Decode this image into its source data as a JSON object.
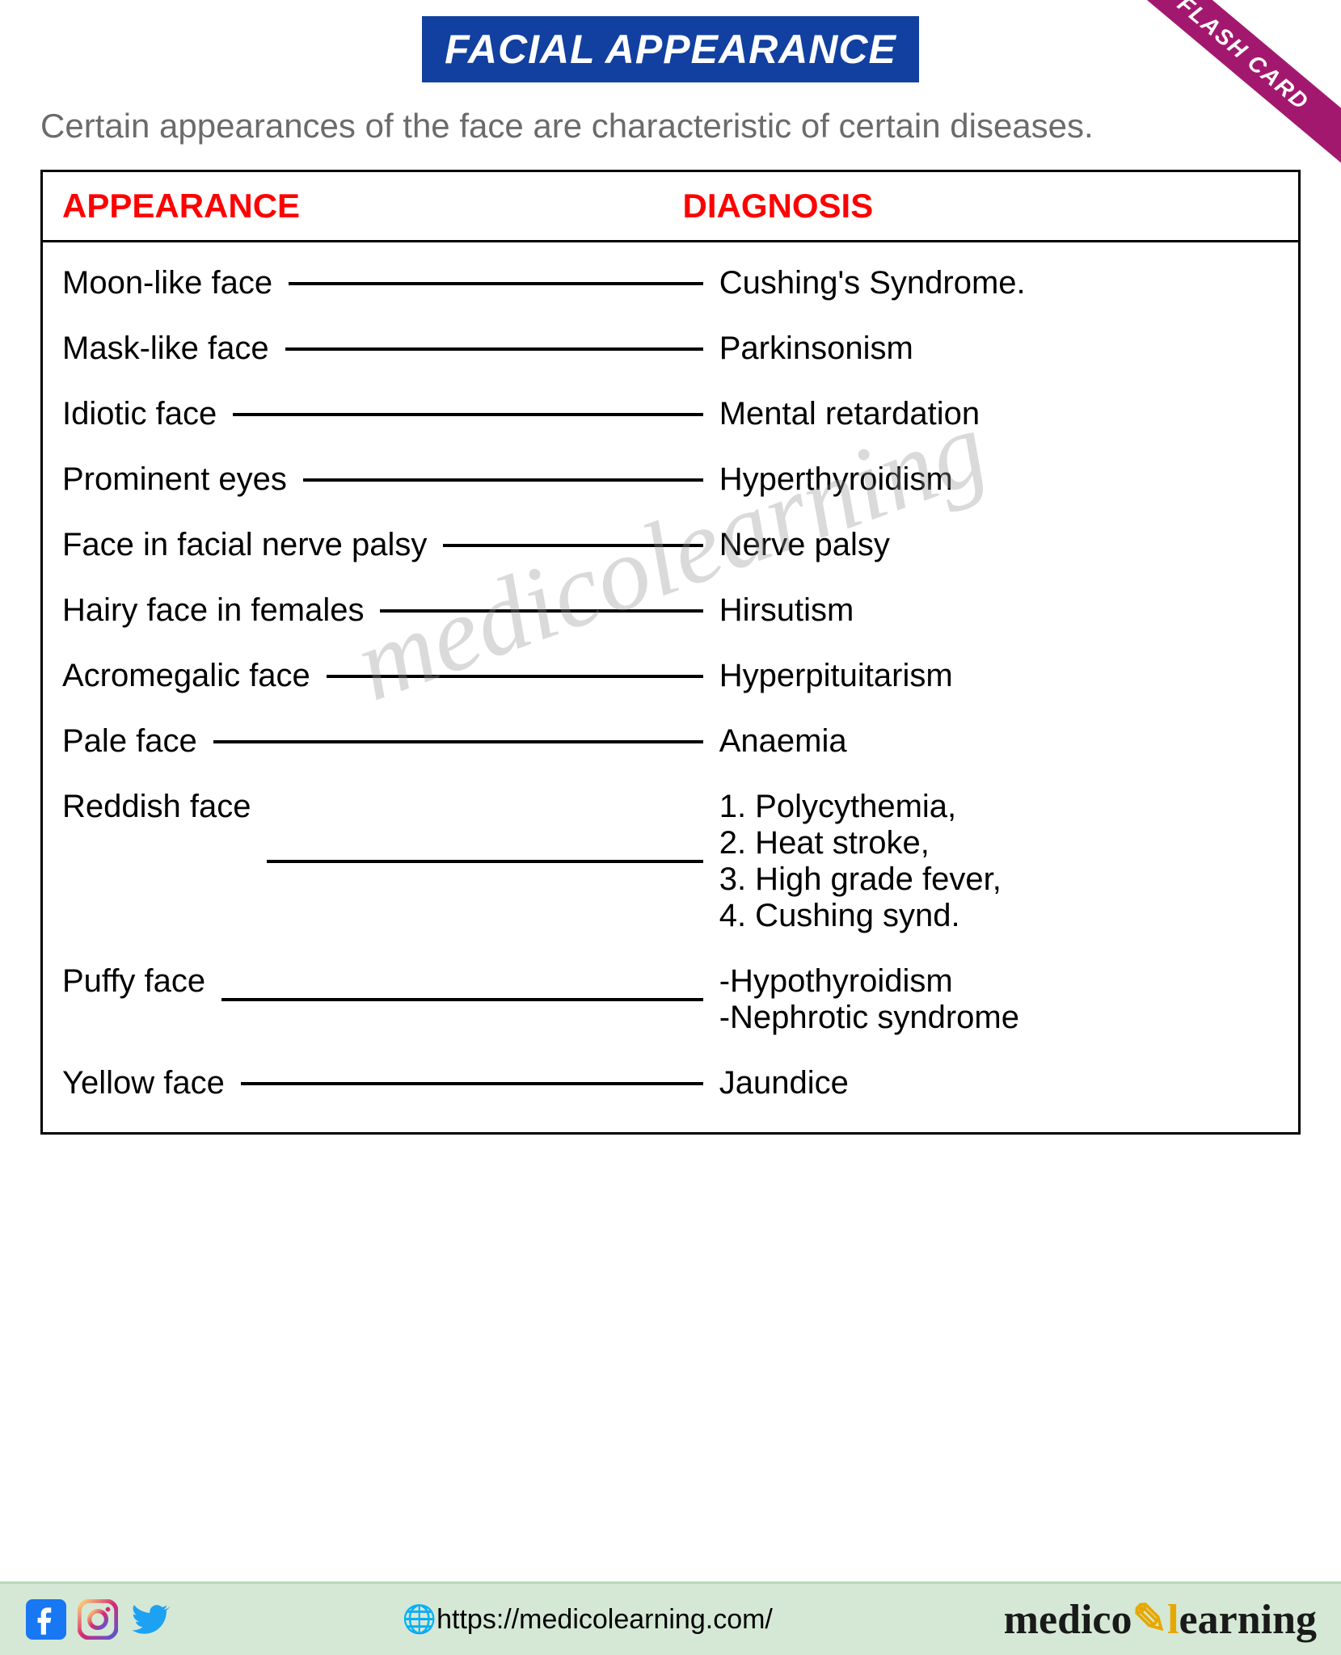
{
  "title": "FACIAL APPEARANCE",
  "ribbon": "FLASH CARD",
  "subtitle": "Certain appearances of the face are characteristic of certain diseases.",
  "headers": {
    "left": "APPEARANCE",
    "right": "DIAGNOSIS"
  },
  "watermark": "medicolearning",
  "rows": [
    {
      "appearance": "Moon-like face",
      "diagnosis": [
        "Cushing's Syndrome."
      ]
    },
    {
      "appearance": "Mask-like face",
      "diagnosis": [
        "Parkinsonism"
      ]
    },
    {
      "appearance": "Idiotic face",
      "diagnosis": [
        "Mental retardation"
      ]
    },
    {
      "appearance": "Prominent eyes",
      "diagnosis": [
        "Hyperthyroidism"
      ]
    },
    {
      "appearance": "Face in facial nerve palsy",
      "diagnosis": [
        "Nerve palsy"
      ]
    },
    {
      "appearance": "Hairy face in females",
      "diagnosis": [
        "Hirsutism"
      ]
    },
    {
      "appearance": "Acromegalic face",
      "diagnosis": [
        "Hyperpituitarism"
      ]
    },
    {
      "appearance": "Pale face",
      "diagnosis": [
        "Anaemia"
      ]
    },
    {
      "appearance": "Reddish face",
      "diagnosis": [
        "1. Polycythemia,",
        "2. Heat stroke,",
        "3. High grade fever,",
        "4. Cushing synd."
      ]
    },
    {
      "appearance": "Puffy face",
      "diagnosis": [
        "-Hypothyroidism",
        "-Nephrotic syndrome"
      ]
    },
    {
      "appearance": "Yellow face",
      "diagnosis": [
        "Jaundice"
      ]
    }
  ],
  "footer": {
    "url": "https://medicolearning.com/",
    "brand_part1": "medico",
    "brand_part2": "earning"
  },
  "style": {
    "title_bg": "#1140a0",
    "title_color": "#ffffff",
    "title_fontsize": 50,
    "subtitle_color": "#6b6b6b",
    "subtitle_fontsize": 42,
    "header_color": "#ff0000",
    "header_fontsize": 42,
    "body_fontsize": 40,
    "border_color": "#000000",
    "ribbon_bg": "#a3186f",
    "ribbon_color": "#ffffff",
    "ribbon_fontsize": 28,
    "footer_bg": "#d5e8d5",
    "watermark_color": "rgba(150,150,150,0.35)",
    "watermark_fontsize": 130,
    "brand_fontsize": 52,
    "url_fontsize": 34,
    "fb_color": "#1877f2",
    "ig_color": "#e1306c",
    "tw_color": "#1da1f2"
  }
}
